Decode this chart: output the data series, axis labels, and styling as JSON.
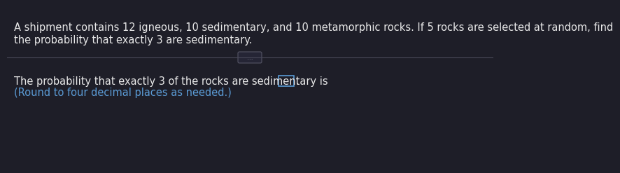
{
  "bg_color": "#1e1e28",
  "line1": "A shipment contains 12 igneous, 10 sedimentary, and 10 metamorphic rocks. If 5 rocks are selected at random, find",
  "line2": "the probability that exactly 3 are sedimentary.",
  "separator_text": "...",
  "answer_line": "The probability that exactly 3 of the rocks are sedimentary is",
  "hint_line": "(Round to four decimal places as needed.)",
  "text_color": "#e8e8e8",
  "hint_color": "#5b9bd5",
  "separator_line_color": "#484858",
  "separator_box_edge": "#555565",
  "separator_box_fill": "#252535",
  "separator_text_color": "#888898",
  "box_edge_color": "#5b9bd5",
  "box_fill_color": "#1e1e28",
  "period_color": "#e8e8e8",
  "font_size_main": 10.5,
  "font_size_hint": 10.5,
  "font_size_sep": 6.5
}
